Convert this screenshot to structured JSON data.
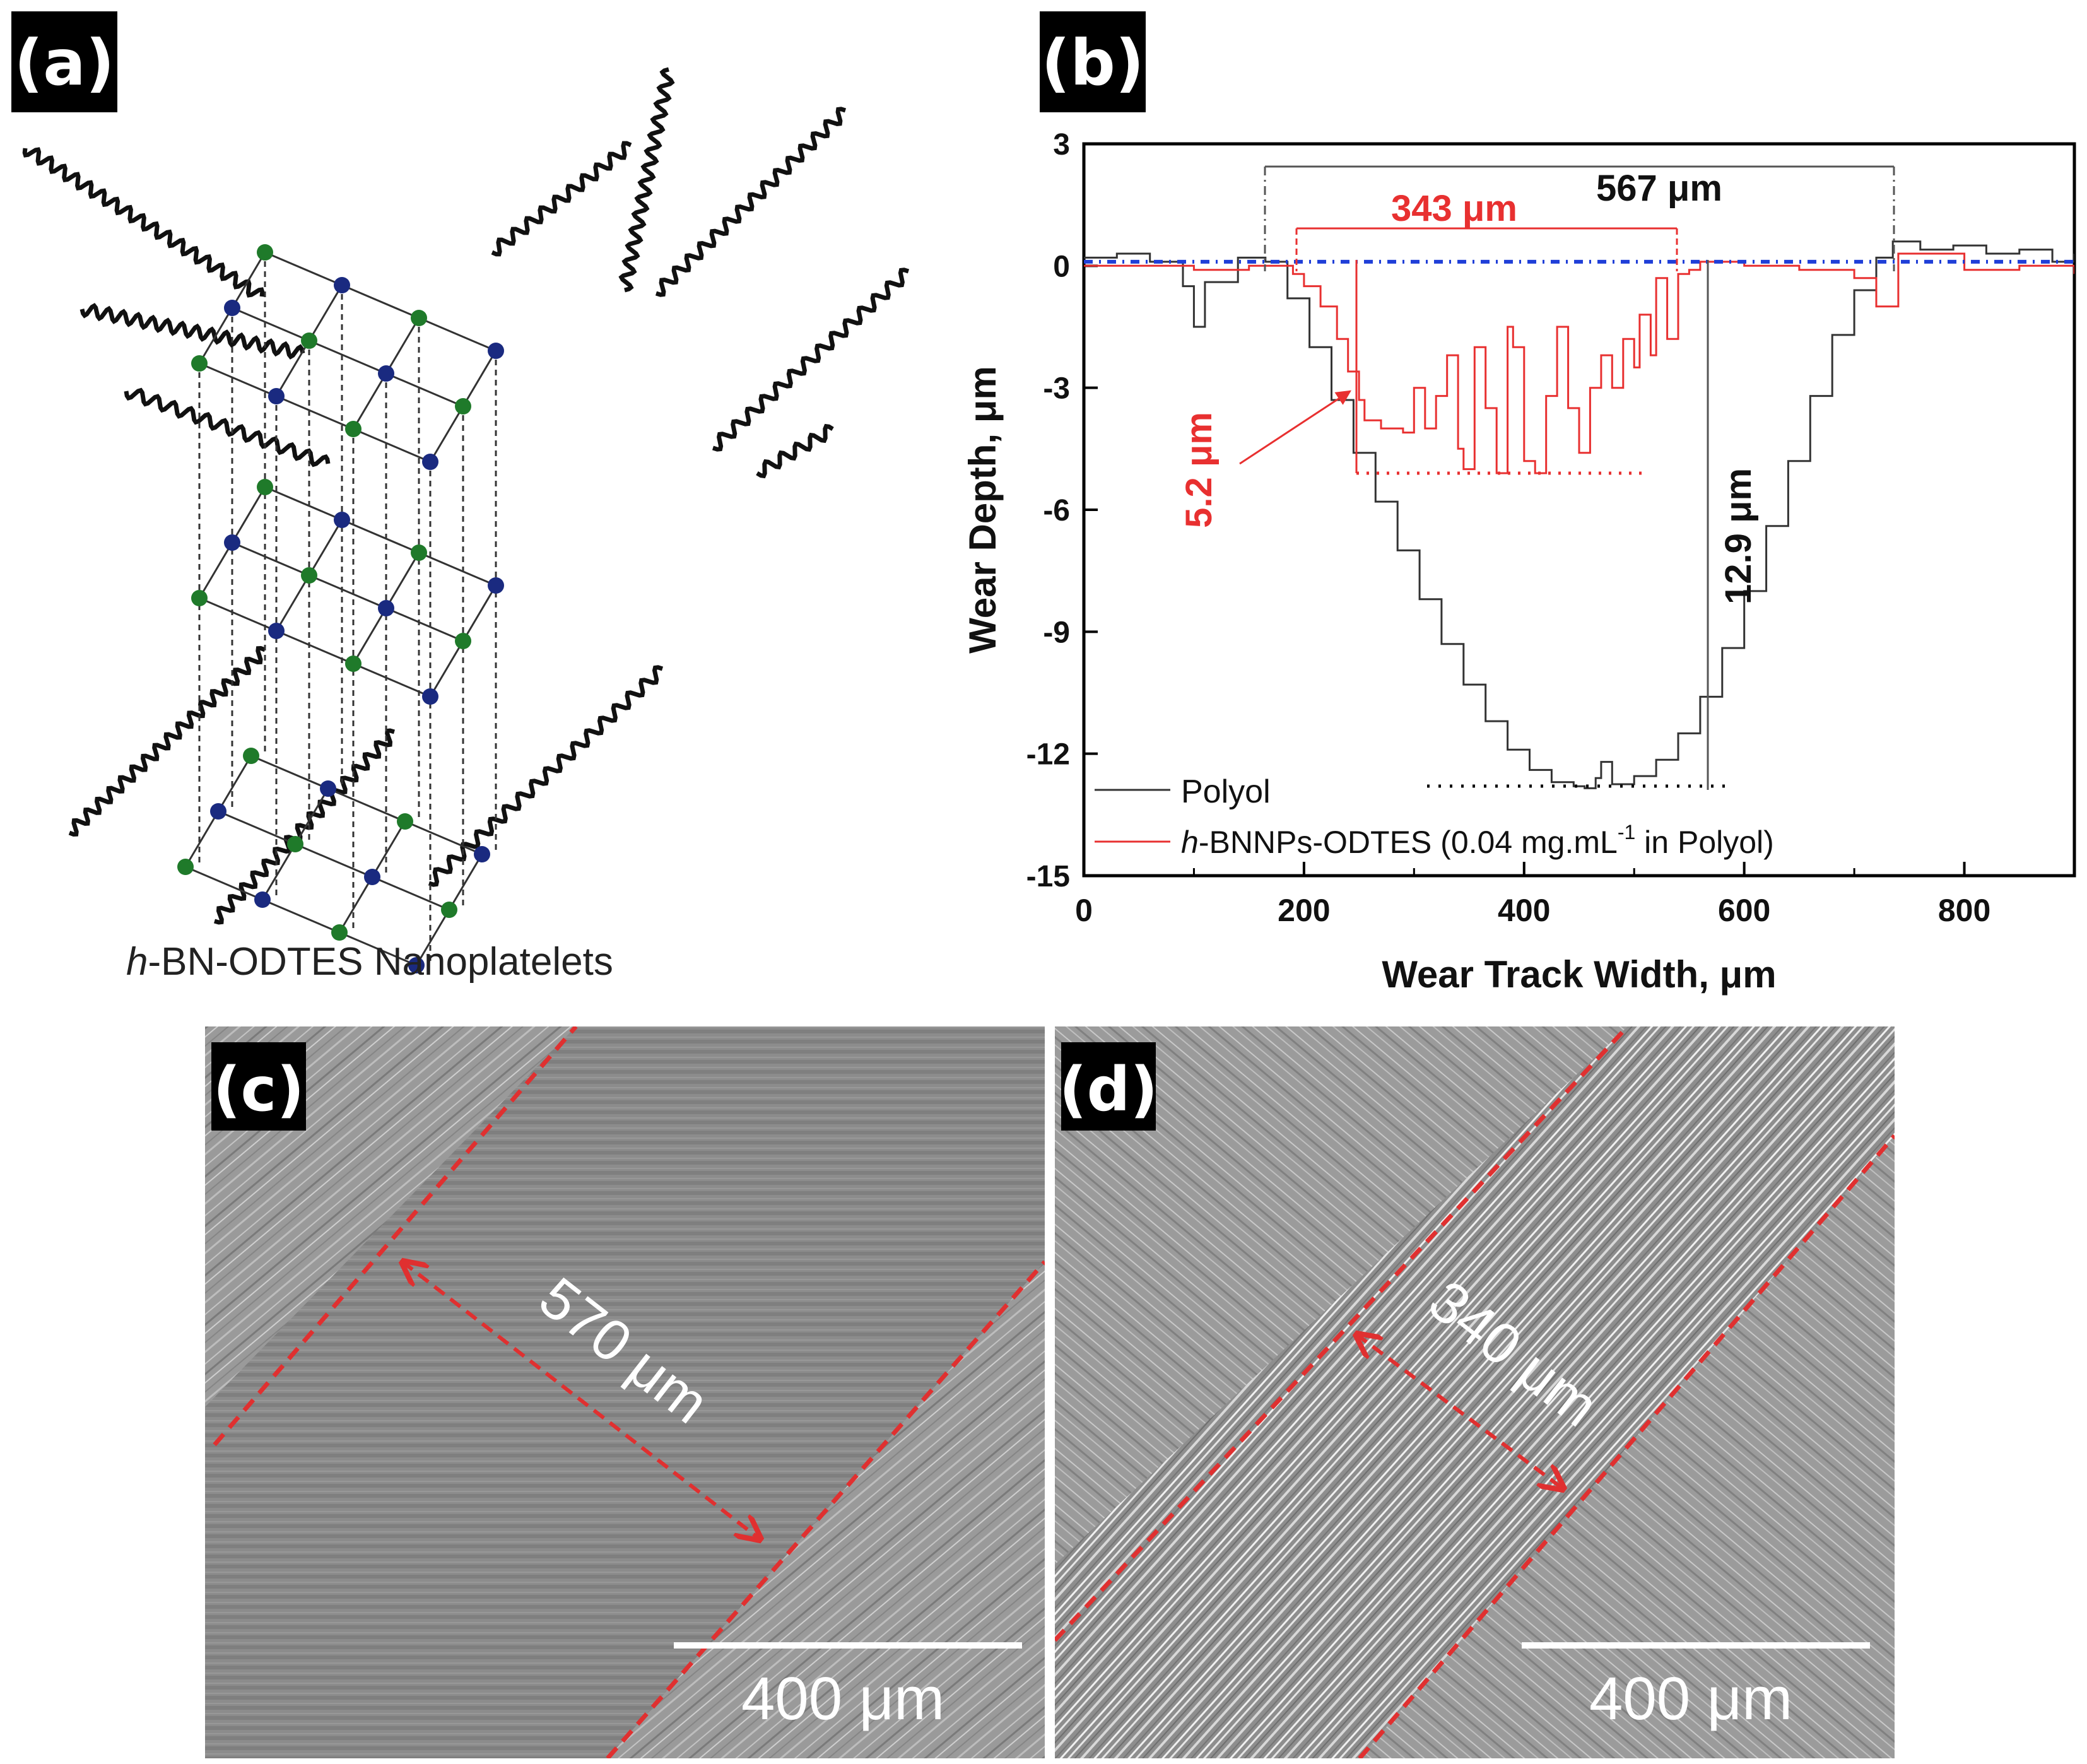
{
  "panel_a": {
    "label": "(a)",
    "caption_italic": "h",
    "caption_rest": "-BN-ODTES Nanoplatelets",
    "colors": {
      "boron_atom": "#1a2a80",
      "nitrogen_atom": "#1f7a2a"
    }
  },
  "panel_b": {
    "label": "(b)",
    "chart_data": {
      "type": "line",
      "title": "",
      "xlabel": "Wear Track Width, μm",
      "ylabel": "Wear Depth, μm",
      "xlim": [
        0,
        900
      ],
      "ylim": [
        -15,
        3
      ],
      "xticks": [
        "0",
        "200",
        "400",
        "600",
        "800"
      ],
      "yticks": [
        "3",
        "0",
        "-3",
        "-6",
        "-9",
        "-12",
        "-15"
      ],
      "legend_position": "bottom-left",
      "series": [
        {
          "name": "Polyol",
          "color": "#333333",
          "x": [
            0,
            30,
            60,
            90,
            100,
            110,
            140,
            165,
            185,
            205,
            225,
            245,
            265,
            285,
            305,
            325,
            345,
            365,
            385,
            405,
            425,
            445,
            455,
            465,
            470,
            480,
            500,
            520,
            540,
            560,
            580,
            600,
            620,
            640,
            660,
            680,
            700,
            720,
            735,
            760,
            790,
            820,
            850,
            880,
            900
          ],
          "y": [
            0.2,
            0.3,
            0.1,
            -0.5,
            -1.5,
            -0.4,
            0.2,
            0.1,
            -0.8,
            -2.0,
            -3.3,
            -4.6,
            -5.8,
            -7.0,
            -8.2,
            -9.3,
            -10.3,
            -11.2,
            -11.9,
            -12.4,
            -12.7,
            -12.8,
            -12.85,
            -12.6,
            -12.2,
            -12.75,
            -12.55,
            -12.15,
            -11.5,
            -10.6,
            -9.4,
            -8.0,
            -6.4,
            -4.8,
            -3.2,
            -1.7,
            -0.6,
            0.2,
            0.6,
            0.4,
            0.5,
            0.3,
            0.4,
            0.1,
            0.3
          ]
        },
        {
          "name": "h-BNNPs-ODTES (0.04 mg.mL-1 in Polyol)",
          "color": "#e83030",
          "x": [
            0,
            50,
            100,
            150,
            190,
            200,
            215,
            230,
            240,
            250,
            255,
            270,
            290,
            300,
            310,
            320,
            330,
            340,
            345,
            355,
            365,
            375,
            385,
            390,
            400,
            410,
            420,
            430,
            440,
            450,
            460,
            470,
            480,
            490,
            500,
            505,
            515,
            520,
            530,
            540,
            550,
            560,
            600,
            650,
            700,
            720,
            740,
            800,
            850,
            900
          ],
          "y": [
            0,
            0,
            -0.1,
            0,
            -0.2,
            -0.5,
            -1.0,
            -1.8,
            -2.6,
            -3.3,
            -3.8,
            -4.0,
            -4.1,
            -3.0,
            -4.0,
            -3.2,
            -2.2,
            -4.5,
            -5.0,
            -2.0,
            -3.5,
            -5.1,
            -1.5,
            -2.0,
            -4.8,
            -5.1,
            -3.2,
            -1.5,
            -3.5,
            -4.6,
            -3.0,
            -2.2,
            -3.0,
            -1.8,
            -2.5,
            -1.2,
            -2.2,
            -0.3,
            -1.8,
            -0.2,
            -0.1,
            0.1,
            0,
            -0.1,
            -0.3,
            -1.0,
            0.3,
            -0.1,
            0,
            -0.2
          ]
        },
        {
          "name": "",
          "color": "#1f3fd8",
          "x": [
            0,
            900
          ],
          "y": [
            0.1,
            0.1
          ]
        }
      ],
      "annotations": {
        "polyol_width": "567 μm",
        "hbn_width": "343 μm",
        "polyol_depth": "12.9 μm",
        "hbn_depth": "5.2 μm"
      }
    },
    "legend_polyol": "Polyol",
    "legend_hbn_italic": "h",
    "legend_hbn_a": "-BNNPs-ODTES (0.04 mg.mL",
    "legend_hbn_sup": "-1",
    "legend_hbn_b": " in Polyol)"
  },
  "panel_c": {
    "label": "(c)",
    "width_label": "570 μm",
    "scale_label": "400 μm"
  },
  "panel_d": {
    "label": "(d)",
    "width_label": "340 μm",
    "scale_label": "400 μm"
  }
}
